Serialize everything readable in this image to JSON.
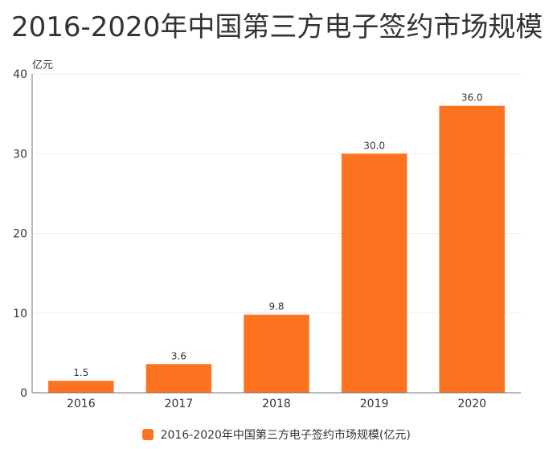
{
  "chart_data": {
    "type": "bar",
    "title": "2016-2020年中国第三方电子签约市场规模",
    "ylabel": "亿元",
    "xlabel": "",
    "categories": [
      "2016",
      "2017",
      "2018",
      "2019",
      "2020"
    ],
    "series": [
      {
        "name": "2016-2020年中国第三方电子签约市场规模(亿元)",
        "values": [
          1.5,
          3.6,
          9.8,
          30.0,
          36.0
        ],
        "labels": [
          "1.5",
          "3.6",
          "9.8",
          "30.0",
          "36.0"
        ]
      }
    ],
    "ylim": [
      0,
      40
    ],
    "yticks": [
      0,
      10,
      20,
      30,
      40
    ],
    "grid": true,
    "legend": "bottom-center",
    "colors": {
      "bar": "#fd7320",
      "axis": "#6e7079",
      "grid": "#eeeeee",
      "text": "#333333"
    }
  }
}
